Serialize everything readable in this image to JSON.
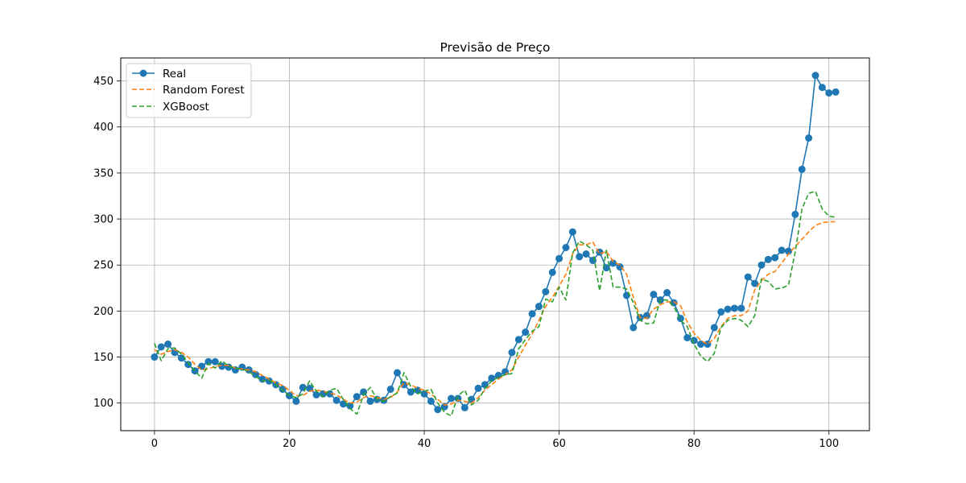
{
  "chart_data": {
    "type": "line",
    "title": "Previsão de Preço",
    "xlabel": "",
    "ylabel": "",
    "xlim": [
      -5,
      106
    ],
    "ylim": [
      70,
      475
    ],
    "xticks": [
      0,
      20,
      40,
      60,
      80,
      100
    ],
    "yticks": [
      100,
      150,
      200,
      250,
      300,
      350,
      400,
      450
    ],
    "grid": true,
    "legend_position": "top-left",
    "series": [
      {
        "name": "Real",
        "color": "#1f77b4",
        "style": "solid-markers",
        "values": [
          150,
          161,
          164,
          155,
          149,
          142,
          135,
          140,
          145,
          145,
          140,
          139,
          136,
          139,
          136,
          131,
          126,
          124,
          120,
          115,
          108,
          102,
          117,
          116,
          109,
          110,
          110,
          103,
          99,
          97,
          107,
          112,
          102,
          104,
          103,
          115,
          133,
          120,
          112,
          114,
          110,
          102,
          93,
          96,
          105,
          105,
          95,
          104,
          116,
          120,
          127,
          130,
          134,
          155,
          169,
          177,
          197,
          205,
          221,
          242,
          257,
          269,
          286,
          259,
          262,
          255,
          264,
          247,
          252,
          248,
          217,
          182,
          193,
          195,
          218,
          212,
          220,
          209,
          192,
          171,
          168,
          164,
          164,
          182,
          199,
          202,
          203,
          203,
          237,
          230,
          250,
          256,
          258,
          266,
          265,
          305,
          354,
          388,
          456,
          443,
          437,
          438
        ]
      },
      {
        "name": "Random Forest",
        "color": "#ff7f0e",
        "style": "dashed",
        "values": [
          158,
          153,
          156,
          158,
          155,
          150,
          142,
          136,
          137,
          140,
          141,
          141,
          138,
          137,
          136,
          134,
          130,
          126,
          122,
          119,
          114,
          108,
          108,
          113,
          114,
          113,
          111,
          109,
          104,
          100,
          101,
          106,
          108,
          106,
          104,
          106,
          112,
          122,
          120,
          116,
          114,
          110,
          104,
          98,
          99,
          103,
          102,
          100,
          106,
          114,
          120,
          126,
          131,
          136,
          150,
          163,
          175,
          190,
          205,
          215,
          227,
          240,
          262,
          272,
          272,
          275,
          262,
          265,
          254,
          250,
          240,
          215,
          193,
          192,
          202,
          207,
          210,
          210,
          206,
          188,
          176,
          168,
          164,
          170,
          183,
          192,
          195,
          195,
          200,
          223,
          233,
          240,
          243,
          252,
          262,
          270,
          278,
          286,
          293,
          296,
          297,
          297
        ]
      },
      {
        "name": "XGBoost",
        "color": "#2ca02c",
        "style": "dashed",
        "values": [
          165,
          146,
          159,
          160,
          153,
          144,
          135,
          127,
          143,
          138,
          146,
          140,
          138,
          137,
          134,
          129,
          124,
          125,
          120,
          114,
          108,
          106,
          110,
          124,
          113,
          107,
          114,
          116,
          104,
          94,
          88,
          109,
          117,
          104,
          102,
          107,
          111,
          133,
          118,
          110,
          113,
          115,
          100,
          90,
          86,
          108,
          114,
          98,
          103,
          116,
          124,
          128,
          131,
          132,
          159,
          169,
          178,
          183,
          213,
          210,
          226,
          212,
          263,
          276,
          272,
          266,
          222,
          266,
          226,
          226,
          224,
          209,
          190,
          186,
          187,
          212,
          212,
          205,
          190,
          183,
          164,
          151,
          145,
          154,
          182,
          190,
          192,
          190,
          183,
          195,
          235,
          232,
          224,
          225,
          228,
          264,
          311,
          328,
          330,
          311,
          303,
          302
        ]
      }
    ]
  }
}
